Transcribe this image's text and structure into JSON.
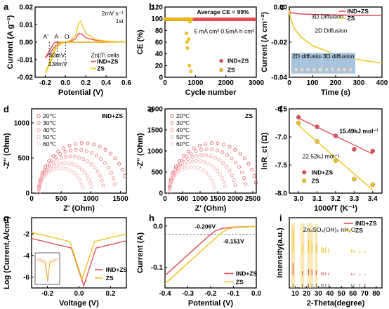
{
  "colors": {
    "ind": "#e0505a",
    "zs": "#f2c320",
    "ind_light": "#f4a0a8",
    "dash": "#666666"
  },
  "panels": [
    {
      "id": "a",
      "letter": "a"
    },
    {
      "id": "b",
      "letter": "b"
    },
    {
      "id": "c",
      "letter": "c"
    },
    {
      "id": "d",
      "letter": "d"
    },
    {
      "id": "e",
      "letter": "e"
    },
    {
      "id": "f",
      "letter": "f"
    },
    {
      "id": "g",
      "letter": "g"
    },
    {
      "id": "h",
      "letter": "h"
    },
    {
      "id": "i",
      "letter": "i"
    }
  ],
  "chart_data": [
    {
      "panel": "a",
      "type": "line",
      "xlabel": "Potential (V)",
      "ylabel": "Current (A g⁻¹)",
      "xlim": [
        -0.3,
        0.6
      ],
      "ylim": [
        -0.02,
        0.02
      ],
      "xticks": [
        "-0.2",
        "0.0",
        "0.2",
        "0.4",
        "0.6"
      ],
      "yticks": [
        "-0.02",
        "-0.01",
        "0.00",
        "0.01",
        "0.02"
      ],
      "annotations": [
        "2mV s⁻¹",
        "1st",
        "A'",
        "A",
        "O",
        "83mV",
        "138mV",
        "Zn||Ti  cells"
      ],
      "series": [
        {
          "name": "IND+ZS",
          "x": [
            -0.2,
            -0.15,
            -0.12,
            -0.1,
            -0.05,
            0.0,
            0.05,
            0.1,
            0.13,
            0.16,
            0.2,
            0.3,
            0.4,
            0.5,
            0.6,
            0.5,
            0.4,
            0.3,
            0.2,
            0.1,
            0.0,
            -0.05,
            -0.1,
            -0.15,
            -0.2
          ],
          "y": [
            -0.009,
            -0.004,
            -0.001,
            0.0,
            0.0,
            0.0,
            0.0005,
            0.002,
            0.005,
            0.0045,
            0.0025,
            0.001,
            0.0005,
            0.0003,
            0.0002,
            0.0001,
            0.0,
            0.0,
            0.0,
            0.0,
            0.0,
            -0.0003,
            -0.002,
            -0.006,
            -0.009
          ]
        },
        {
          "name": "ZS",
          "x": [
            -0.2,
            -0.15,
            -0.1,
            -0.08,
            -0.05,
            0.0,
            0.05,
            0.1,
            0.13,
            0.15,
            0.2,
            0.3,
            0.4,
            0.5,
            0.6,
            0.5,
            0.4,
            0.3,
            0.2,
            0.1,
            0.0,
            -0.05,
            -0.1,
            -0.15,
            -0.2
          ],
          "y": [
            -0.018,
            -0.01,
            -0.003,
            -0.001,
            0.0,
            0.0,
            0.001,
            0.004,
            0.011,
            0.012,
            0.005,
            0.0015,
            0.0006,
            0.0003,
            0.0002,
            0.0001,
            0.0,
            0.0,
            0.0,
            0.0,
            0.0,
            -0.001,
            -0.004,
            -0.012,
            -0.018
          ]
        }
      ]
    },
    {
      "panel": "b",
      "type": "scatter",
      "xlabel": "Cycle number",
      "ylabel": "CE (%)",
      "xlim": [
        0,
        3000
      ],
      "ylim": [
        0,
        120
      ],
      "xticks": [
        "0",
        "1000",
        "2000",
        "3000"
      ],
      "yticks": [
        "0",
        "20",
        "40",
        "60",
        "80",
        "100",
        "120"
      ],
      "annotations": [
        "Average CE = 99%",
        "5 mA cm² 0.5mA h cm²"
      ],
      "series": [
        {
          "name": "IND+ZS",
          "ce_level": 99,
          "x_range": [
            0,
            3000
          ]
        },
        {
          "name": "ZS",
          "ce_level": 99,
          "x_range": [
            0,
            900
          ],
          "outliers_x": [
            700,
            720,
            740,
            760,
            780,
            800,
            820,
            850
          ],
          "outliers_y": [
            75,
            60,
            50,
            100,
            65,
            20,
            95,
            10
          ]
        }
      ]
    },
    {
      "panel": "c",
      "type": "line",
      "xlabel": "Time (s)",
      "ylabel": "Current (A cm⁻²)",
      "xlim": [
        0,
        400
      ],
      "ylim": [
        -0.04,
        0.0
      ],
      "xticks": [
        "0",
        "100",
        "200",
        "300",
        "400"
      ],
      "yticks": [
        "-0.04",
        "-0.02",
        "0.00"
      ],
      "annotations": [
        "3D Diffusion",
        "2D Diffusion",
        "2D diffusion",
        "3D diffusion"
      ],
      "series": [
        {
          "name": "IND+ZS",
          "x": [
            0,
            5,
            20,
            50,
            100,
            200,
            300,
            400
          ],
          "y": [
            -0.002,
            -0.003,
            -0.0035,
            -0.004,
            -0.0042,
            -0.0045,
            -0.0047,
            -0.0048
          ]
        },
        {
          "name": "ZS",
          "x": [
            0,
            5,
            20,
            50,
            100,
            200,
            300,
            400
          ],
          "y": [
            -0.002,
            -0.006,
            -0.012,
            -0.017,
            -0.022,
            -0.027,
            -0.03,
            -0.032
          ]
        }
      ]
    },
    {
      "panel": "d",
      "type": "scatter",
      "title": "IND+ZS",
      "xlabel": "Z' (Ohm)",
      "ylabel": "-Z'' (Ohm)",
      "xlim": [
        0,
        1600
      ],
      "ylim": [
        0,
        1200
      ],
      "xticks": [
        "0",
        "500",
        "1000",
        "1500"
      ],
      "yticks": [
        "0",
        "500",
        "1000"
      ],
      "series": [
        {
          "name": "20℃",
          "r": 1500
        },
        {
          "name": "30℃",
          "r": 1300
        },
        {
          "name": "40℃",
          "r": 1100
        },
        {
          "name": "50℃",
          "r": 900
        },
        {
          "name": "60℃",
          "r": 750
        }
      ]
    },
    {
      "panel": "e",
      "type": "scatter",
      "title": "ZS",
      "xlabel": "Z' (Ohm)",
      "ylabel": "-Z'' (Ohm)",
      "xlim": [
        0,
        2600
      ],
      "ylim": [
        0,
        2000
      ],
      "xticks": [
        "0",
        "500",
        "1000",
        "1500",
        "2000",
        "2500"
      ],
      "yticks": [
        "0",
        "500",
        "1000",
        "1500",
        "2000"
      ],
      "series": [
        {
          "name": "20℃",
          "r": 2500
        },
        {
          "name": "30℃",
          "r": 2200
        },
        {
          "name": "40℃",
          "r": 1900
        },
        {
          "name": "50℃",
          "r": 1600
        },
        {
          "name": "60℃",
          "r": 1300
        }
      ]
    },
    {
      "panel": "f",
      "type": "scatter",
      "xlabel": "1000/T (K⁻¹)",
      "ylabel": "lnR_ct (Ω)",
      "xlim": [
        2.95,
        3.45
      ],
      "ylim": [
        -8.0,
        -6.5
      ],
      "xticks": [
        "3.0",
        "3.1",
        "3.2",
        "3.3",
        "3.4"
      ],
      "yticks": [
        "-6.5",
        "-7.0",
        "-7.5",
        "-8.0"
      ],
      "annotations": [
        "15.49kJ mol⁻¹",
        "22.52kJ mol⁻¹"
      ],
      "series": [
        {
          "name": "IND+ZS",
          "x": [
            3.0,
            3.1,
            3.2,
            3.3,
            3.4
          ],
          "y": [
            -6.65,
            -6.82,
            -6.98,
            -7.22,
            -7.25
          ]
        },
        {
          "name": "ZS",
          "x": [
            3.0,
            3.1,
            3.2,
            3.3,
            3.4
          ],
          "y": [
            -6.75,
            -7.08,
            -7.42,
            -7.75,
            -7.85
          ]
        }
      ]
    },
    {
      "panel": "g",
      "type": "line",
      "xlabel": "Voltage (V)",
      "ylabel": "Log (Current,A/cm²)",
      "xlim": [
        -0.3,
        0.3
      ],
      "ylim": [
        -7,
        -0.5
      ],
      "xticks": [
        "-0.2",
        "0.0",
        "0.2"
      ],
      "yticks": [
        "-2",
        "-4",
        "-6"
      ],
      "series": [
        {
          "name": "IND+ZS",
          "corr_v": 0.03,
          "min": -6.8
        },
        {
          "name": "ZS",
          "corr_v": 0.02,
          "min": -6.2
        }
      ]
    },
    {
      "panel": "h",
      "type": "line",
      "xlabel": "Potential (V)",
      "ylabel": "Current (A)",
      "xlim": [
        -0.4,
        0.0
      ],
      "ylim": [
        -0.15,
        0.02
      ],
      "xticks": [
        "-0.4",
        "-0.3",
        "-0.2",
        "-0.1",
        "0.0"
      ],
      "yticks": [
        "-0.1",
        "0.0"
      ],
      "annotations": [
        "-0.206V",
        "-0.151V"
      ],
      "series": [
        {
          "name": "IND+ZS",
          "x": [
            -0.4,
            -0.35,
            -0.3,
            -0.25,
            -0.21,
            -0.18,
            -0.15,
            -0.1,
            0.0
          ],
          "y": [
            -0.12,
            -0.095,
            -0.07,
            -0.045,
            -0.025,
            -0.012,
            -0.006,
            -0.003,
            -0.001
          ]
        },
        {
          "name": "ZS",
          "x": [
            -0.4,
            -0.35,
            -0.3,
            -0.25,
            -0.2,
            -0.16,
            -0.13,
            -0.1,
            0.0
          ],
          "y": [
            -0.14,
            -0.115,
            -0.09,
            -0.065,
            -0.04,
            -0.02,
            -0.008,
            -0.004,
            -0.001
          ]
        }
      ]
    },
    {
      "panel": "i",
      "type": "bar",
      "xlabel": "2-Theta(degree)",
      "ylabel": "Intensity(a.u.)",
      "xlim": [
        5,
        85
      ],
      "xticks": [
        "10",
        "20",
        "30",
        "40",
        "50",
        "60",
        "70",
        "80"
      ],
      "annotations": [
        "Zn₄SO₄(OH)₆·nH₂O"
      ],
      "series": [
        {
          "name": "IND+ZS",
          "peaks_x": [
            8.2,
            16.3,
            21.7,
            24.5,
            28.3,
            32.8,
            34.2,
            36.4,
            39,
            58.8,
            60.8,
            66,
            70.4
          ]
        },
        {
          "name": "ZS",
          "peaks_x": [
            8.2,
            16.3,
            21.7,
            24.5,
            28.3,
            32.8,
            34.2,
            36.4,
            39,
            58.8,
            60.8,
            66,
            70.4
          ]
        }
      ]
    }
  ]
}
